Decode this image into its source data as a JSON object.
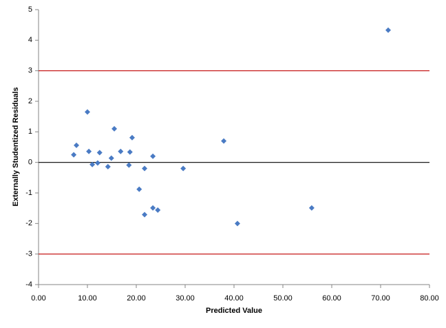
{
  "chart_data": {
    "type": "scatter",
    "x_label": "Predicted Value",
    "y_label": "Externally Studentized Residuals",
    "x": [
      71.55,
      10.0,
      15.5,
      19.15,
      37.9,
      7.75,
      10.3,
      16.8,
      18.7,
      12.5,
      7.2,
      23.4,
      14.9,
      11.0,
      12.1,
      14.2,
      18.5,
      21.7,
      29.6,
      20.6,
      23.4,
      24.4,
      21.7,
      40.7,
      55.9
    ],
    "values": [
      4.33,
      1.65,
      1.1,
      0.81,
      0.7,
      0.56,
      0.36,
      0.36,
      0.34,
      0.32,
      0.25,
      0.2,
      0.14,
      -0.07,
      -0.02,
      -0.14,
      -0.09,
      -0.2,
      -0.2,
      -0.88,
      -1.49,
      -1.56,
      -1.71,
      -2.0,
      -1.49
    ],
    "color": "#4a7bc4",
    "xlim": [
      0,
      80
    ],
    "ylim": [
      -4,
      5
    ],
    "xticks": [
      {
        "value": 0,
        "label": "0.00"
      },
      {
        "value": 10,
        "label": "10.00"
      },
      {
        "value": 20,
        "label": "20.00"
      },
      {
        "value": 30,
        "label": "30.00"
      },
      {
        "value": 40,
        "label": "40.00"
      },
      {
        "value": 50,
        "label": "50.00"
      },
      {
        "value": 60,
        "label": "60.00"
      },
      {
        "value": 70,
        "label": "70.00"
      },
      {
        "value": 80,
        "label": "80.00"
      }
    ],
    "yticks": [
      -4,
      -3,
      -2,
      -1,
      0,
      1,
      2,
      3,
      4,
      5
    ],
    "reference_lines": [
      {
        "value": 3,
        "color": "#c00000"
      },
      {
        "value": -3,
        "color": "#c00000"
      },
      {
        "value": 0,
        "color": "#000000"
      }
    ]
  }
}
